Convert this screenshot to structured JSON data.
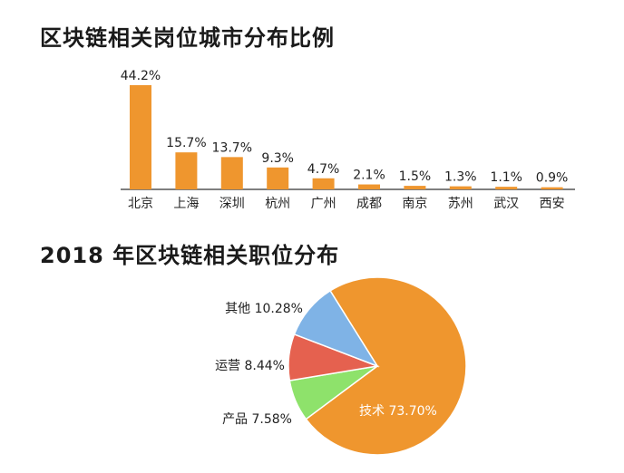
{
  "chart_data": [
    {
      "type": "bar",
      "title": "区块链相关岗位城市分布比例",
      "categories": [
        "北京",
        "上海",
        "深圳",
        "杭州",
        "广州",
        "成都",
        "南京",
        "苏州",
        "武汉",
        "西安"
      ],
      "values": [
        44.2,
        15.7,
        13.7,
        9.3,
        4.7,
        2.1,
        1.5,
        1.3,
        1.1,
        0.9
      ],
      "value_labels": [
        "44.2%",
        "15.7%",
        "13.7%",
        "9.3%",
        "4.7%",
        "2.1%",
        "1.5%",
        "1.3%",
        "1.1%",
        "0.9%"
      ],
      "xlabel": "",
      "ylabel": "",
      "ylim": [
        0,
        44.2
      ],
      "grid": false,
      "color": "#ef962e"
    },
    {
      "type": "pie",
      "title": "2018 年区块链相关职位分布",
      "slices": [
        {
          "label": "技术 73.70%",
          "value": 73.7,
          "color": "#ef962e"
        },
        {
          "label": "产品 7.58%",
          "value": 7.58,
          "color": "#8ee26b"
        },
        {
          "label": "运营 8.44%",
          "value": 8.44,
          "color": "#e5614f"
        },
        {
          "label": "其他 10.28%",
          "value": 10.28,
          "color": "#7fb3e6"
        }
      ]
    }
  ]
}
